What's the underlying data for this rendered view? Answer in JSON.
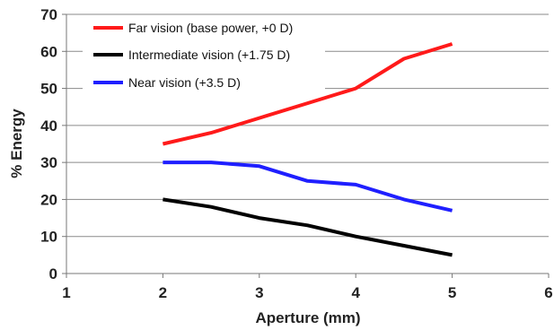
{
  "chart_data": {
    "type": "line",
    "title": "",
    "xlabel": "Aperture (mm)",
    "ylabel": "% Energy",
    "xlim": [
      1,
      6
    ],
    "ylim": [
      0,
      70
    ],
    "xticks": [
      "1",
      "2",
      "3",
      "4",
      "5",
      "6"
    ],
    "yticks": [
      "0",
      "10",
      "20",
      "30",
      "40",
      "50",
      "60",
      "70"
    ],
    "grid": "horizontal",
    "legend_position": "top-left",
    "x": [
      2,
      2.5,
      3,
      3.5,
      4,
      4.5,
      5
    ],
    "series": [
      {
        "name": "Far vision (base power, +0 D)",
        "color": "#ff1a1a",
        "values": [
          35,
          38,
          42,
          46,
          50,
          58,
          62
        ]
      },
      {
        "name": "Intermediate vision (+1.75 D)",
        "color": "#000000",
        "values": [
          20,
          18,
          15,
          13,
          10,
          7.5,
          5
        ]
      },
      {
        "name": "Near vision (+3.5 D)",
        "color": "#1f1fff",
        "values": [
          30,
          30,
          29,
          25,
          24,
          20,
          17
        ]
      }
    ]
  }
}
